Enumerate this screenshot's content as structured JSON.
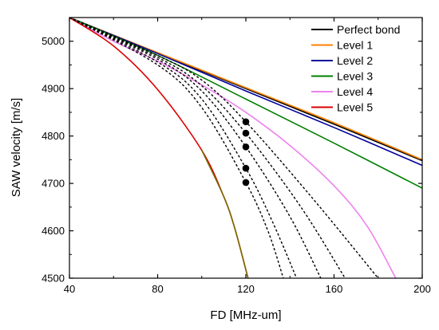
{
  "chart_data": {
    "type": "line",
    "xlabel": "FD [MHz-um]",
    "ylabel": "SAW velocity [m/s]",
    "xlim": [
      40,
      200
    ],
    "ylim": [
      4500,
      5050
    ],
    "xticks": [
      40,
      80,
      120,
      160,
      200
    ],
    "yticks": [
      4500,
      4600,
      4700,
      4800,
      4900,
      5000
    ],
    "grid": false,
    "legend_position": "top-right",
    "series": [
      {
        "name": "Perfect bond",
        "color": "#000000",
        "style": "solid",
        "x": [
          40,
          80,
          120,
          160,
          200
        ],
        "y": [
          5050,
          4975,
          4900,
          4825,
          4748
        ]
      },
      {
        "name": "Level 1",
        "color": "#ff8000",
        "style": "solid",
        "x": [
          40,
          80,
          120,
          160,
          200
        ],
        "y": [
          5050,
          4976,
          4902,
          4828,
          4750
        ]
      },
      {
        "name": "Level 2",
        "color": "#000099",
        "style": "solid",
        "x": [
          40,
          80,
          120,
          160,
          200
        ],
        "y": [
          5050,
          4974,
          4895,
          4818,
          4738
        ]
      },
      {
        "name": "Level 3",
        "color": "#008000",
        "style": "solid",
        "x": [
          40,
          80,
          120,
          160,
          200
        ],
        "y": [
          5050,
          4970,
          4878,
          4785,
          4690
        ]
      },
      {
        "name": "Level 4",
        "color": "#ee82ee",
        "style": "solid",
        "x": [
          40,
          60,
          80,
          100,
          120,
          140,
          160,
          175,
          188
        ],
        "y": [
          5050,
          5000,
          4958,
          4908,
          4850,
          4780,
          4695,
          4610,
          4500
        ]
      },
      {
        "name": "Level 5",
        "color": "#dd0000",
        "style": "solid",
        "x": [
          40,
          60,
          80,
          100,
          110,
          115,
          121
        ],
        "y": [
          5050,
          4990,
          4898,
          4770,
          4672,
          4605,
          4500
        ]
      },
      {
        "name": "",
        "color": "#7a6a00",
        "style": "solid",
        "x": [
          100,
          110,
          115,
          121
        ],
        "y": [
          4770,
          4672,
          4605,
          4500
        ]
      },
      {
        "name": "",
        "color": "#000000",
        "style": "dashed",
        "x": [
          40,
          80,
          100,
          120,
          130,
          137
        ],
        "y": [
          5050,
          4950,
          4860,
          4702,
          4600,
          4500
        ]
      },
      {
        "name": "",
        "color": "#000000",
        "style": "dashed",
        "x": [
          40,
          80,
          100,
          120,
          132,
          143
        ],
        "y": [
          5050,
          4956,
          4878,
          4732,
          4620,
          4500
        ]
      },
      {
        "name": "",
        "color": "#000000",
        "style": "dashed",
        "x": [
          40,
          80,
          100,
          120,
          140,
          154
        ],
        "y": [
          5050,
          4962,
          4895,
          4777,
          4630,
          4500
        ]
      },
      {
        "name": "",
        "color": "#000000",
        "style": "dashed",
        "x": [
          40,
          80,
          100,
          120,
          145,
          165
        ],
        "y": [
          5050,
          4966,
          4906,
          4806,
          4650,
          4500
        ]
      },
      {
        "name": "",
        "color": "#000000",
        "style": "dashed",
        "x": [
          40,
          80,
          100,
          120,
          150,
          180
        ],
        "y": [
          5050,
          4970,
          4918,
          4830,
          4670,
          4500
        ]
      }
    ],
    "markers": {
      "color": "#000000",
      "x": [
        120,
        120,
        120,
        120,
        120
      ],
      "y": [
        4702,
        4732,
        4777,
        4806,
        4830
      ]
    }
  }
}
